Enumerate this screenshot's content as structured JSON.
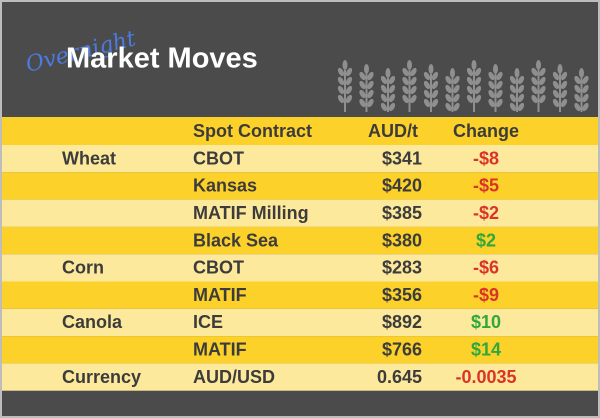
{
  "header": {
    "overnight": "Overnight",
    "title": "Market Moves"
  },
  "table": {
    "columns": [
      "Spot Contract",
      "AUD/t",
      "Change"
    ],
    "rows": [
      {
        "commodity": "Wheat",
        "contract": "CBOT",
        "price": "$341",
        "change": "-$8"
      },
      {
        "contract": "Kansas",
        "price": "$420",
        "change": "-$5"
      },
      {
        "contract": "MATIF Milling",
        "price": "$385",
        "change": "-$2"
      },
      {
        "contract": "Black Sea",
        "price": "$380",
        "change": "$2"
      },
      {
        "commodity": "Corn",
        "contract": "CBOT",
        "price": "$283",
        "change": "-$6"
      },
      {
        "contract": "MATIF",
        "price": "$356",
        "change": "-$9"
      },
      {
        "commodity": "Canola",
        "contract": "ICE",
        "price": "$892",
        "change": "$10"
      },
      {
        "contract": "MATIF",
        "price": "$766",
        "change": "$14"
      },
      {
        "commodity": "Currency",
        "contract": "AUD/USD",
        "price": "0.645",
        "change": "-0.0035"
      }
    ]
  }
}
